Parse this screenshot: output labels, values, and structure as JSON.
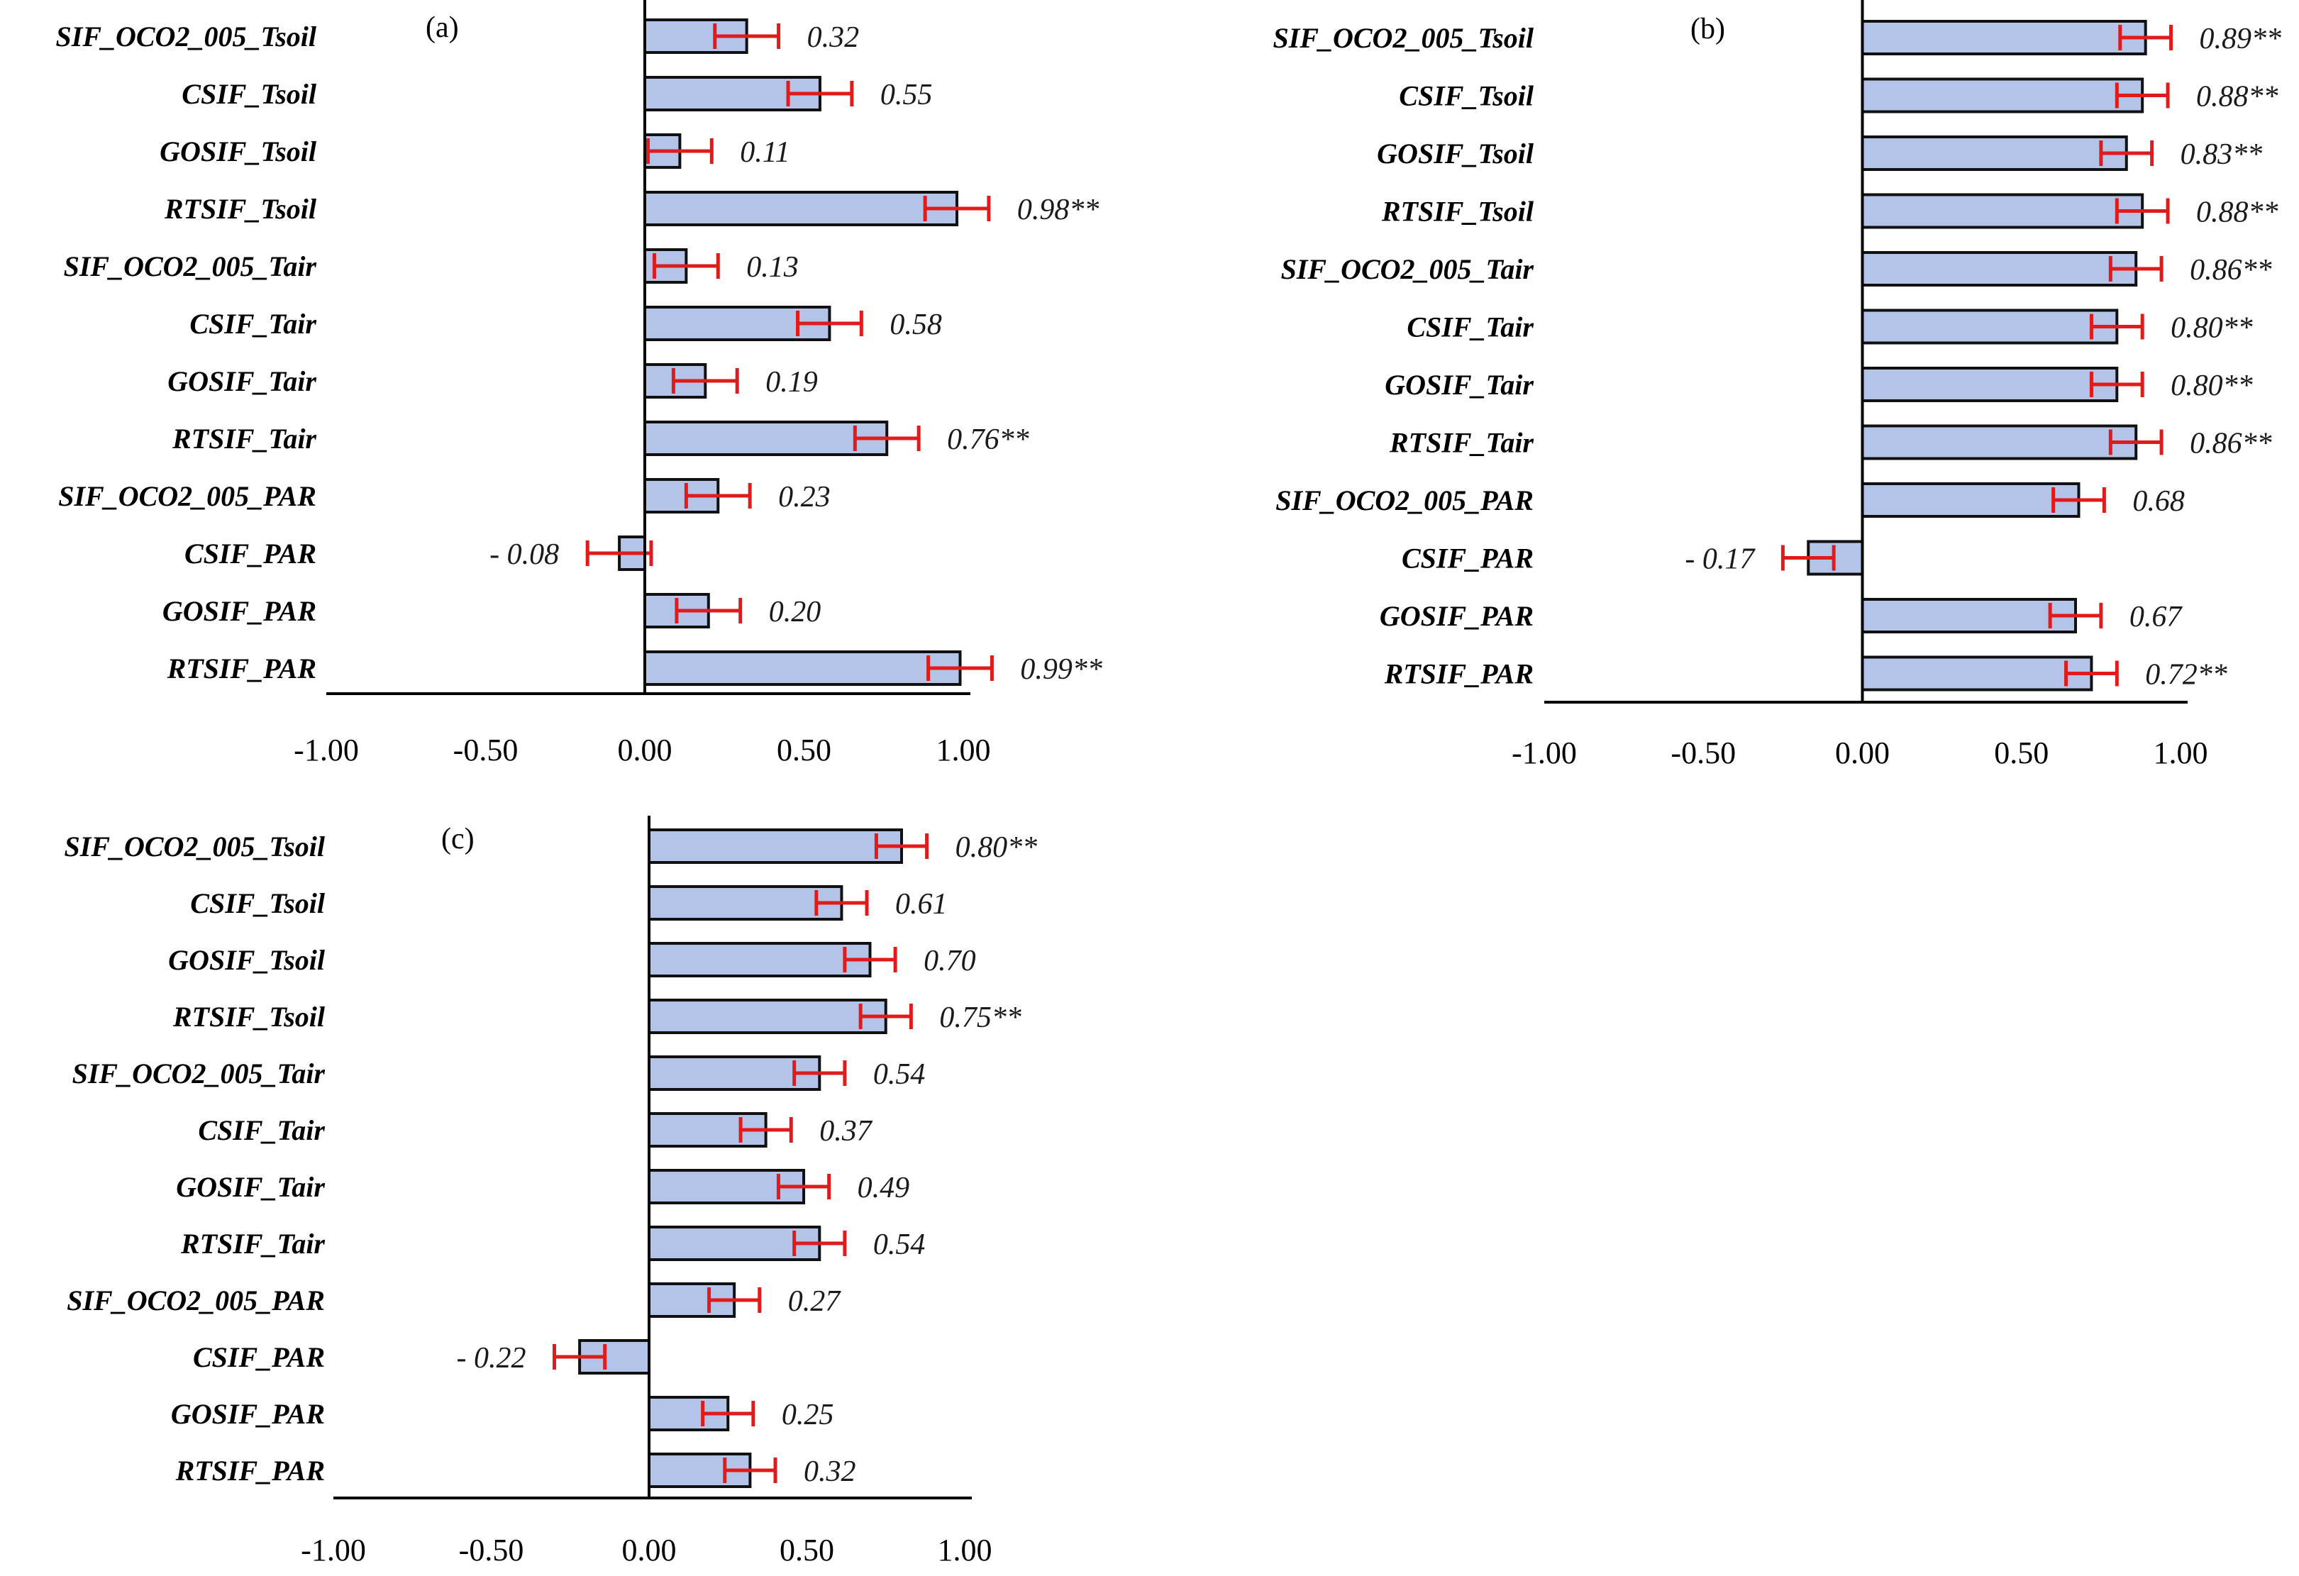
{
  "colors": {
    "bar_fill": "#b4c3e8",
    "bar_stroke": "#111111",
    "error_bar": "#e01b1b",
    "axis": "#000000"
  },
  "chart_data": [
    {
      "type": "bar",
      "orientation": "horizontal",
      "panel_label": "(a)",
      "categories": [
        "SIF_OCO2_005_Tsoil",
        "CSIF_Tsoil",
        "GOSIF_Tsoil",
        "RTSIF_Tsoil",
        "SIF_OCO2_005_Tair",
        "CSIF_Tair",
        "GOSIF_Tair",
        "RTSIF_Tair",
        "SIF_OCO2_005_PAR",
        "CSIF_PAR",
        "GOSIF_PAR",
        "RTSIF_PAR"
      ],
      "values": [
        0.32,
        0.55,
        0.11,
        0.98,
        0.13,
        0.58,
        0.19,
        0.76,
        0.23,
        -0.08,
        0.2,
        0.99
      ],
      "errors": [
        0.1,
        0.1,
        0.1,
        0.1,
        0.1,
        0.1,
        0.1,
        0.1,
        0.1,
        0.1,
        0.1,
        0.1
      ],
      "value_labels": [
        "0.32",
        "0.55",
        "0.11",
        "0.98**",
        "0.13",
        "0.58",
        "0.19",
        "0.76**",
        "0.23",
        "- 0.08",
        "0.20",
        "0.99**"
      ],
      "xlim": [
        -1.0,
        1.0
      ],
      "xticks": [
        "-1.00",
        "-0.50",
        "0.00",
        "0.50",
        "1.00"
      ],
      "xlabel": "",
      "ylabel": ""
    },
    {
      "type": "bar",
      "orientation": "horizontal",
      "panel_label": "(b)",
      "categories": [
        "SIF_OCO2_005_Tsoil",
        "CSIF_Tsoil",
        "GOSIF_Tsoil",
        "RTSIF_Tsoil",
        "SIF_OCO2_005_Tair",
        "CSIF_Tair",
        "GOSIF_Tair",
        "RTSIF_Tair",
        "SIF_OCO2_005_PAR",
        "CSIF_PAR",
        "GOSIF_PAR",
        "RTSIF_PAR"
      ],
      "values": [
        0.89,
        0.88,
        0.83,
        0.88,
        0.86,
        0.8,
        0.8,
        0.86,
        0.68,
        -0.17,
        0.67,
        0.72
      ],
      "errors": [
        0.08,
        0.08,
        0.08,
        0.08,
        0.08,
        0.08,
        0.08,
        0.08,
        0.08,
        0.08,
        0.08,
        0.08
      ],
      "value_labels": [
        "0.89**",
        "0.88**",
        "0.83**",
        "0.88**",
        "0.86**",
        "0.80**",
        "0.80**",
        "0.86**",
        "0.68",
        "- 0.17",
        "0.67",
        "0.72**"
      ],
      "xlim": [
        -1.0,
        1.0
      ],
      "xticks": [
        "-1.00",
        "-0.50",
        "0.00",
        "0.50",
        "1.00"
      ],
      "xlabel": "",
      "ylabel": ""
    },
    {
      "type": "bar",
      "orientation": "horizontal",
      "panel_label": "(c)",
      "categories": [
        "SIF_OCO2_005_Tsoil",
        "CSIF_Tsoil",
        "GOSIF_Tsoil",
        "RTSIF_Tsoil",
        "SIF_OCO2_005_Tair",
        "CSIF_Tair",
        "GOSIF_Tair",
        "RTSIF_Tair",
        "SIF_OCO2_005_PAR",
        "CSIF_PAR",
        "GOSIF_PAR",
        "RTSIF_PAR"
      ],
      "values": [
        0.8,
        0.61,
        0.7,
        0.75,
        0.54,
        0.37,
        0.49,
        0.54,
        0.27,
        -0.22,
        0.25,
        0.32
      ],
      "errors": [
        0.08,
        0.08,
        0.08,
        0.08,
        0.08,
        0.08,
        0.08,
        0.08,
        0.08,
        0.08,
        0.08,
        0.08
      ],
      "value_labels": [
        "0.80**",
        "0.61",
        "0.70",
        "0.75**",
        "0.54",
        "0.37",
        "0.49",
        "0.54",
        "0.27",
        "- 0.22",
        "0.25",
        "0.32"
      ],
      "xlim": [
        -1.0,
        1.0
      ],
      "xticks": [
        "-1.00",
        "-0.50",
        "0.00",
        "0.50",
        "1.00"
      ],
      "xlabel": "",
      "ylabel": ""
    }
  ]
}
